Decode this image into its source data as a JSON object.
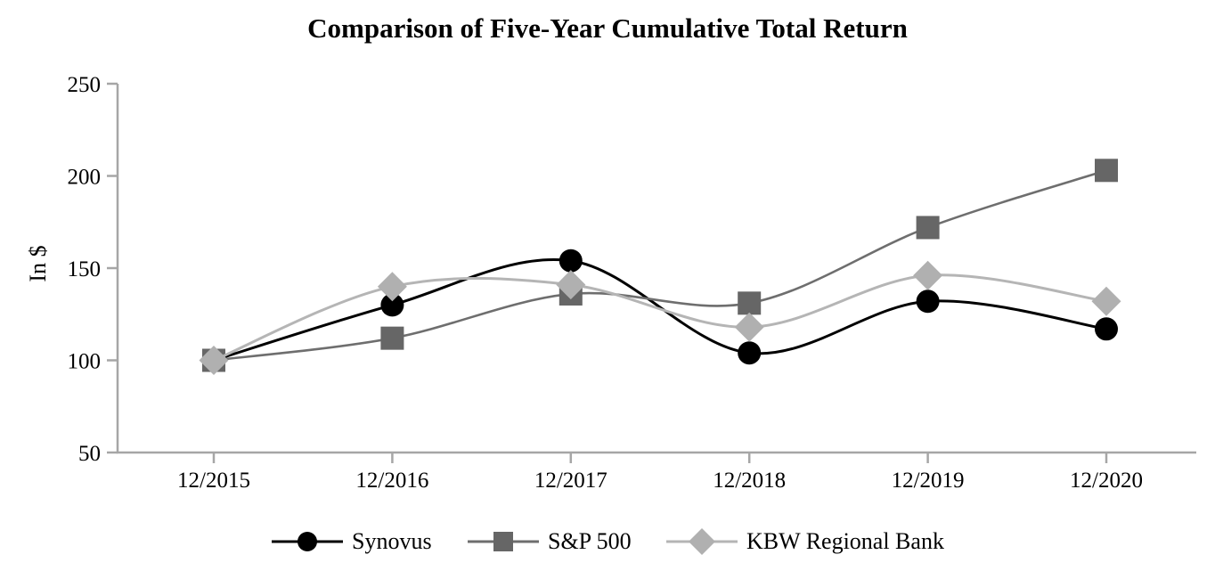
{
  "chart_data": {
    "type": "line",
    "title": "Comparison of Five-Year Cumulative Total Return",
    "ylabel": "In $",
    "xlabel": "",
    "categories": [
      "12/2015",
      "12/2016",
      "12/2017",
      "12/2018",
      "12/2019",
      "12/2020"
    ],
    "y_ticks": [
      50,
      100,
      150,
      200,
      250
    ],
    "ylim": [
      50,
      250
    ],
    "grid": false,
    "line_style": "smooth",
    "legend_position": "bottom",
    "axis_color": "#a6a6a6",
    "text_color": "#000000",
    "series": [
      {
        "name": "Synovus",
        "marker": "circle",
        "line_color": "#000000",
        "marker_color": "#000000",
        "values": [
          100,
          130,
          154,
          104,
          132,
          117
        ]
      },
      {
        "name": "S&P 500",
        "marker": "square",
        "line_color": "#6e6e6e",
        "marker_color": "#666666",
        "values": [
          100,
          112,
          136,
          131,
          172,
          203
        ]
      },
      {
        "name": "KBW Regional Bank",
        "marker": "diamond",
        "line_color": "#b5b5b5",
        "marker_color": "#b0b0b0",
        "values": [
          100,
          140,
          141,
          118,
          146,
          132
        ]
      }
    ]
  }
}
